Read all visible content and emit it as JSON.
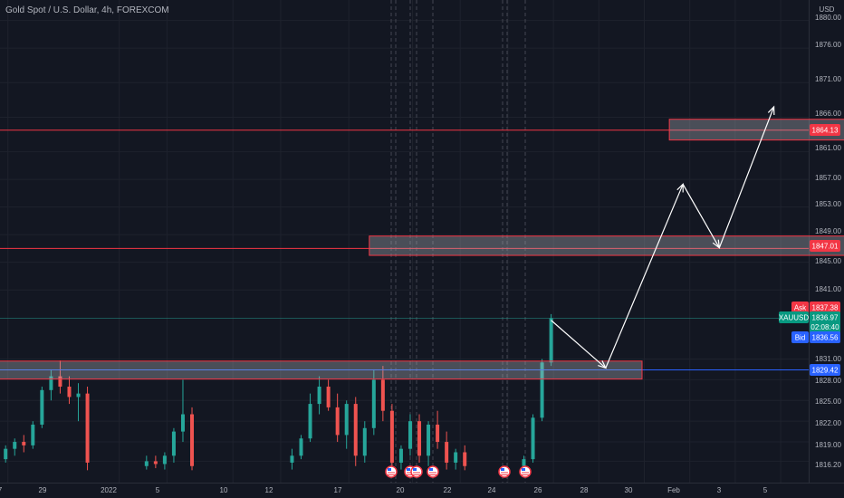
{
  "legend": {
    "symbol_description": "Gold Spot / U.S. Dollar, 4h, FOREXCOM"
  },
  "price_axis": {
    "currency": "USD",
    "labels": [
      "1880.00",
      "1876.00",
      "1871.00",
      "1866.00",
      "1861.00",
      "1857.00",
      "1853.00",
      "1849.00",
      "1845.00",
      "1841.00",
      "1831.00",
      "1828.00",
      "1825.00",
      "1822.00",
      "1819.00",
      "1816.20"
    ]
  },
  "time_axis": {
    "labels": [
      "7",
      "29",
      "2022",
      "5",
      "10",
      "12",
      "17",
      "20",
      "22",
      "24",
      "26",
      "28",
      "30",
      "Feb",
      "3",
      "5"
    ]
  },
  "tags": {
    "ask_label": "Ask",
    "ask_price": "1837.38",
    "symbol": "XAUUSD",
    "last_price": "1836.97",
    "countdown": "02:08:40",
    "bid_label": "Bid",
    "bid_price": "1836.56",
    "level_high": "1864.13",
    "level_mid": "1847.01",
    "level_low": "1829.42"
  },
  "colors": {
    "background": "#131722",
    "up": "#26a69a",
    "down": "#ef5350",
    "resistance_line": "#f23645",
    "support_line": "#2962ff",
    "zone_fill": "#b2b5be",
    "arrow": "#ffffff"
  },
  "chart_data": {
    "type": "candlestick",
    "symbol": "XAUUSD",
    "interval": "4h",
    "ylim": [
      1814.6,
      1881.3
    ],
    "y_ticks": [
      1880,
      1876,
      1871,
      1866,
      1861,
      1857,
      1853,
      1849,
      1845,
      1841,
      1831,
      1828,
      1825,
      1822,
      1819,
      1816.2
    ],
    "horizontal_levels": [
      {
        "price": 1864.13,
        "color": "red"
      },
      {
        "price": 1847.01,
        "color": "red"
      },
      {
        "price": 1829.42,
        "color": "blue"
      }
    ],
    "zones": [
      {
        "from_day": -5.4,
        "to_day": 23.0,
        "low": 1828.1,
        "high": 1830.7
      },
      {
        "from_day": 11.0,
        "to_day": 39.0,
        "low": 1846.0,
        "high": 1848.8
      },
      {
        "from_day": 24.2,
        "to_day": 45.0,
        "low": 1862.7,
        "high": 1865.7
      }
    ],
    "projection_path": [
      {
        "day": 19.0,
        "price": 1836.6
      },
      {
        "day": 21.4,
        "price": 1829.7
      },
      {
        "day": 24.8,
        "price": 1856.3
      },
      {
        "day": 26.4,
        "price": 1847.1
      },
      {
        "day": 28.8,
        "price": 1867.5
      }
    ],
    "candles_approx": [
      {
        "day": -10.4,
        "o": 1818.0,
        "h": 1819.5,
        "l": 1815.0,
        "c": 1816.0
      },
      {
        "day": -9.9,
        "o": 1816.0,
        "h": 1818.0,
        "l": 1815.0,
        "c": 1817.5
      },
      {
        "day": -9.0,
        "o": 1819.0,
        "h": 1820.0,
        "l": 1814.9,
        "c": 1816.0
      },
      {
        "day": -5.4,
        "o": 1815.5,
        "h": 1817.0,
        "l": 1815.0,
        "c": 1816.5
      },
      {
        "day": -5.0,
        "o": 1816.5,
        "h": 1818.5,
        "l": 1816.0,
        "c": 1818.0
      },
      {
        "day": -4.6,
        "o": 1818.0,
        "h": 1819.5,
        "l": 1817.0,
        "c": 1819.0
      },
      {
        "day": -4.2,
        "o": 1819.0,
        "h": 1820.0,
        "l": 1817.5,
        "c": 1818.5
      },
      {
        "day": -3.8,
        "o": 1818.5,
        "h": 1822.0,
        "l": 1818.0,
        "c": 1821.5
      },
      {
        "day": -3.4,
        "o": 1821.5,
        "h": 1827.0,
        "l": 1821.0,
        "c": 1826.5
      },
      {
        "day": -3.0,
        "o": 1826.5,
        "h": 1829.5,
        "l": 1825.0,
        "c": 1828.5
      },
      {
        "day": -2.6,
        "o": 1828.5,
        "h": 1830.8,
        "l": 1826.0,
        "c": 1827.0
      },
      {
        "day": -2.2,
        "o": 1827.0,
        "h": 1828.5,
        "l": 1824.5,
        "c": 1825.5
      },
      {
        "day": -1.8,
        "o": 1825.5,
        "h": 1827.5,
        "l": 1822.0,
        "c": 1826.0
      },
      {
        "day": -1.4,
        "o": 1826.0,
        "h": 1827.0,
        "l": 1814.9,
        "c": 1816.0
      },
      {
        "day": 1.2,
        "o": 1815.5,
        "h": 1817.0,
        "l": 1815.0,
        "c": 1816.2
      },
      {
        "day": 1.6,
        "o": 1816.2,
        "h": 1817.0,
        "l": 1815.2,
        "c": 1815.8
      },
      {
        "day": 2.0,
        "o": 1815.8,
        "h": 1817.5,
        "l": 1815.0,
        "c": 1817.0
      },
      {
        "day": 2.4,
        "o": 1817.0,
        "h": 1821.0,
        "l": 1816.0,
        "c": 1820.5
      },
      {
        "day": 2.8,
        "o": 1820.5,
        "h": 1828.0,
        "l": 1819.0,
        "c": 1823.0
      },
      {
        "day": 3.2,
        "o": 1823.0,
        "h": 1824.0,
        "l": 1814.9,
        "c": 1815.5
      },
      {
        "day": 7.6,
        "o": 1816.0,
        "h": 1818.0,
        "l": 1815.0,
        "c": 1817.0
      },
      {
        "day": 8.0,
        "o": 1817.0,
        "h": 1820.0,
        "l": 1816.5,
        "c": 1819.5
      },
      {
        "day": 8.4,
        "o": 1819.5,
        "h": 1826.0,
        "l": 1819.0,
        "c": 1824.5
      },
      {
        "day": 8.8,
        "o": 1824.5,
        "h": 1828.5,
        "l": 1823.0,
        "c": 1827.0
      },
      {
        "day": 9.2,
        "o": 1827.0,
        "h": 1828.0,
        "l": 1823.5,
        "c": 1824.0
      },
      {
        "day": 9.6,
        "o": 1824.0,
        "h": 1826.0,
        "l": 1819.0,
        "c": 1820.0
      },
      {
        "day": 10.0,
        "o": 1820.0,
        "h": 1825.0,
        "l": 1818.0,
        "c": 1824.5
      },
      {
        "day": 10.4,
        "o": 1824.5,
        "h": 1825.5,
        "l": 1815.5,
        "c": 1817.0
      },
      {
        "day": 10.8,
        "o": 1817.0,
        "h": 1822.0,
        "l": 1816.0,
        "c": 1821.0
      },
      {
        "day": 11.2,
        "o": 1821.0,
        "h": 1829.5,
        "l": 1820.0,
        "c": 1828.0
      },
      {
        "day": 11.6,
        "o": 1828.0,
        "h": 1830.0,
        "l": 1822.0,
        "c": 1823.5
      },
      {
        "day": 12.0,
        "o": 1823.5,
        "h": 1824.5,
        "l": 1815.0,
        "c": 1816.0
      },
      {
        "day": 12.4,
        "o": 1816.0,
        "h": 1818.5,
        "l": 1815.0,
        "c": 1818.0
      },
      {
        "day": 12.8,
        "o": 1818.0,
        "h": 1823.0,
        "l": 1817.0,
        "c": 1822.0
      },
      {
        "day": 13.2,
        "o": 1822.0,
        "h": 1823.0,
        "l": 1816.0,
        "c": 1817.0
      },
      {
        "day": 13.6,
        "o": 1817.0,
        "h": 1822.0,
        "l": 1815.5,
        "c": 1821.5
      },
      {
        "day": 14.0,
        "o": 1821.5,
        "h": 1823.5,
        "l": 1818.0,
        "c": 1819.0
      },
      {
        "day": 14.4,
        "o": 1819.0,
        "h": 1820.5,
        "l": 1815.0,
        "c": 1816.0
      },
      {
        "day": 14.8,
        "o": 1816.0,
        "h": 1818.0,
        "l": 1815.0,
        "c": 1817.5
      },
      {
        "day": 15.2,
        "o": 1817.5,
        "h": 1818.5,
        "l": 1814.9,
        "c": 1815.5
      },
      {
        "day": 17.8,
        "o": 1815.5,
        "h": 1817.0,
        "l": 1814.9,
        "c": 1816.5
      },
      {
        "day": 18.2,
        "o": 1816.5,
        "h": 1823.0,
        "l": 1816.0,
        "c": 1822.5
      },
      {
        "day": 18.6,
        "o": 1822.5,
        "h": 1831.0,
        "l": 1822.0,
        "c": 1830.5
      },
      {
        "day": 19.0,
        "o": 1830.5,
        "h": 1837.5,
        "l": 1830.0,
        "c": 1836.9
      }
    ]
  }
}
